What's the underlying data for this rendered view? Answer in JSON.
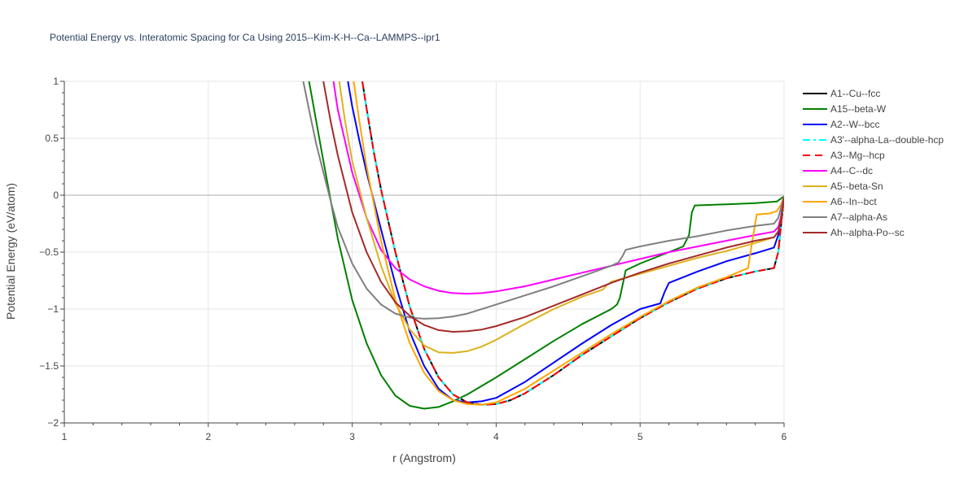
{
  "chart_data": {
    "type": "line",
    "title": "Potential Energy vs. Interatomic Spacing for Ca Using 2015--Kim-K-H--Ca--LAMMPS--ipr1",
    "xlabel": "r (Angstrom)",
    "ylabel": "Potential Energy (eV/atom)",
    "xlim": [
      1,
      6
    ],
    "ylim": [
      -2,
      1
    ],
    "xticks": [
      1,
      2,
      3,
      4,
      5,
      6
    ],
    "xtick_labels": [
      "1",
      "2",
      "3",
      "4",
      "5",
      "6"
    ],
    "yticks": [
      -2,
      -1.5,
      -1,
      -0.5,
      0,
      0.5,
      1
    ],
    "ytick_labels": [
      "−2",
      "−1.5",
      "−1",
      "−0.5",
      "0",
      "0.5",
      "1"
    ],
    "grid": true,
    "legend_position": "right",
    "series": [
      {
        "name": "A1--Cu--fcc",
        "color": "#000000",
        "dash": "solid",
        "x": [
          3.07,
          3.1,
          3.15,
          3.2,
          3.3,
          3.4,
          3.5,
          3.6,
          3.7,
          3.8,
          3.9,
          4.0,
          4.1,
          4.2,
          4.4,
          4.6,
          4.8,
          5.0,
          5.2,
          5.4,
          5.6,
          5.8,
          5.93,
          5.96,
          5.98,
          6.0
        ],
        "y": [
          1.0,
          0.76,
          0.38,
          0.05,
          -0.5,
          -0.98,
          -1.35,
          -1.6,
          -1.75,
          -1.82,
          -1.84,
          -1.835,
          -1.8,
          -1.74,
          -1.58,
          -1.4,
          -1.24,
          -1.08,
          -0.94,
          -0.82,
          -0.73,
          -0.67,
          -0.64,
          -0.5,
          -0.25,
          -0.02
        ]
      },
      {
        "name": "A15--beta-W",
        "color": "#008000",
        "dash": "solid",
        "x": [
          2.7,
          2.8,
          2.9,
          3.0,
          3.1,
          3.2,
          3.3,
          3.4,
          3.5,
          3.6,
          3.7,
          3.8,
          4.0,
          4.2,
          4.4,
          4.6,
          4.8,
          4.84,
          4.86,
          4.9,
          5.0,
          5.1,
          5.2,
          5.3,
          5.34,
          5.36,
          5.38,
          5.6,
          5.8,
          5.95,
          6.0
        ],
        "y": [
          1.0,
          0.3,
          -0.38,
          -0.92,
          -1.3,
          -1.58,
          -1.76,
          -1.85,
          -1.875,
          -1.86,
          -1.81,
          -1.75,
          -1.6,
          -1.44,
          -1.28,
          -1.13,
          -1.0,
          -0.96,
          -0.9,
          -0.66,
          -0.6,
          -0.55,
          -0.5,
          -0.45,
          -0.35,
          -0.15,
          -0.09,
          -0.08,
          -0.07,
          -0.055,
          -0.01
        ]
      },
      {
        "name": "A2--W--bcc",
        "color": "#0000ff",
        "dash": "solid",
        "x": [
          2.97,
          3.0,
          3.05,
          3.1,
          3.2,
          3.3,
          3.4,
          3.5,
          3.6,
          3.7,
          3.8,
          3.9,
          4.0,
          4.2,
          4.4,
          4.6,
          4.8,
          5.0,
          5.14,
          5.17,
          5.2,
          5.4,
          5.6,
          5.8,
          5.93,
          5.96,
          5.98,
          6.0
        ],
        "y": [
          1.0,
          0.78,
          0.48,
          0.2,
          -0.3,
          -0.78,
          -1.2,
          -1.5,
          -1.7,
          -1.8,
          -1.82,
          -1.81,
          -1.78,
          -1.64,
          -1.47,
          -1.3,
          -1.14,
          -1.0,
          -0.95,
          -0.85,
          -0.77,
          -0.67,
          -0.58,
          -0.51,
          -0.46,
          -0.35,
          -0.18,
          -0.02
        ]
      },
      {
        "name": "A3'--alpha-La--double-hcp",
        "color": "#00ffff",
        "dash": "dash-dot",
        "x": [
          3.07,
          3.1,
          3.15,
          3.2,
          3.3,
          3.4,
          3.5,
          3.6,
          3.7,
          3.8,
          3.9,
          4.0,
          4.1,
          4.2,
          4.4,
          4.6,
          4.8,
          5.0,
          5.2,
          5.4,
          5.6,
          5.8,
          5.93,
          5.96,
          5.98,
          6.0
        ],
        "y": [
          1.0,
          0.76,
          0.38,
          0.05,
          -0.5,
          -0.98,
          -1.35,
          -1.6,
          -1.75,
          -1.82,
          -1.84,
          -1.835,
          -1.8,
          -1.74,
          -1.58,
          -1.4,
          -1.24,
          -1.08,
          -0.94,
          -0.82,
          -0.73,
          -0.67,
          -0.64,
          -0.5,
          -0.25,
          -0.02
        ]
      },
      {
        "name": "A3--Mg--hcp",
        "color": "#ff0000",
        "dash": "dash",
        "x": [
          3.07,
          3.1,
          3.15,
          3.2,
          3.3,
          3.4,
          3.5,
          3.6,
          3.7,
          3.8,
          3.9,
          4.0,
          4.1,
          4.2,
          4.4,
          4.6,
          4.8,
          5.0,
          5.2,
          5.4,
          5.6,
          5.8,
          5.93,
          5.96,
          5.98,
          6.0
        ],
        "y": [
          1.0,
          0.76,
          0.38,
          0.05,
          -0.5,
          -0.98,
          -1.35,
          -1.6,
          -1.75,
          -1.82,
          -1.84,
          -1.835,
          -1.8,
          -1.74,
          -1.58,
          -1.4,
          -1.24,
          -1.08,
          -0.94,
          -0.82,
          -0.73,
          -0.67,
          -0.64,
          -0.5,
          -0.25,
          -0.02
        ]
      },
      {
        "name": "A4--C--dc",
        "color": "#ff00ff",
        "dash": "solid",
        "x": [
          2.87,
          2.9,
          3.0,
          3.1,
          3.2,
          3.3,
          3.4,
          3.5,
          3.6,
          3.7,
          3.8,
          3.9,
          4.0,
          4.2,
          4.4,
          4.6,
          4.8,
          5.0,
          5.2,
          5.4,
          5.6,
          5.8,
          5.93,
          5.96,
          5.98,
          6.0
        ],
        "y": [
          1.0,
          0.75,
          0.2,
          -0.2,
          -0.48,
          -0.64,
          -0.74,
          -0.8,
          -0.84,
          -0.86,
          -0.865,
          -0.86,
          -0.845,
          -0.8,
          -0.74,
          -0.68,
          -0.62,
          -0.56,
          -0.5,
          -0.45,
          -0.4,
          -0.35,
          -0.32,
          -0.28,
          -0.18,
          -0.02
        ]
      },
      {
        "name": "A5--beta-Sn",
        "color": "#dbb21f",
        "dash": "solid",
        "x": [
          2.91,
          2.95,
          3.0,
          3.1,
          3.2,
          3.3,
          3.4,
          3.5,
          3.6,
          3.7,
          3.8,
          3.9,
          4.0,
          4.2,
          4.4,
          4.6,
          4.74,
          4.77,
          4.8,
          5.0,
          5.2,
          5.4,
          5.6,
          5.8,
          5.93,
          5.96,
          5.98,
          6.0
        ],
        "y": [
          1.0,
          0.65,
          0.3,
          -0.2,
          -0.62,
          -0.95,
          -1.18,
          -1.32,
          -1.38,
          -1.385,
          -1.37,
          -1.33,
          -1.27,
          -1.13,
          -1.0,
          -0.89,
          -0.83,
          -0.79,
          -0.76,
          -0.69,
          -0.62,
          -0.55,
          -0.49,
          -0.42,
          -0.37,
          -0.32,
          -0.2,
          -0.02
        ]
      },
      {
        "name": "A6--In--bct",
        "color": "#ffa500",
        "dash": "solid",
        "x": [
          3.01,
          3.05,
          3.1,
          3.2,
          3.3,
          3.4,
          3.5,
          3.6,
          3.7,
          3.8,
          3.9,
          4.0,
          4.2,
          4.4,
          4.6,
          4.8,
          5.0,
          5.2,
          5.4,
          5.6,
          5.75,
          5.78,
          5.81,
          5.9,
          5.95,
          5.98,
          6.0
        ],
        "y": [
          1.0,
          0.65,
          0.25,
          -0.4,
          -0.92,
          -1.3,
          -1.56,
          -1.72,
          -1.8,
          -1.835,
          -1.84,
          -1.82,
          -1.7,
          -1.54,
          -1.38,
          -1.22,
          -1.07,
          -0.93,
          -0.81,
          -0.72,
          -0.64,
          -0.4,
          -0.17,
          -0.16,
          -0.14,
          -0.08,
          -0.01
        ]
      },
      {
        "name": "A7--alpha-As",
        "color": "#808080",
        "dash": "solid",
        "x": [
          2.66,
          2.7,
          2.75,
          2.8,
          2.85,
          2.9,
          3.0,
          3.1,
          3.2,
          3.3,
          3.4,
          3.5,
          3.6,
          3.7,
          3.8,
          4.0,
          4.2,
          4.4,
          4.6,
          4.8,
          4.85,
          4.88,
          4.9,
          5.0,
          5.2,
          5.4,
          5.6,
          5.8,
          5.93,
          5.96,
          6.0
        ],
        "y": [
          1.0,
          0.75,
          0.45,
          0.2,
          -0.05,
          -0.28,
          -0.6,
          -0.82,
          -0.96,
          -1.04,
          -1.075,
          -1.085,
          -1.08,
          -1.065,
          -1.04,
          -0.96,
          -0.88,
          -0.8,
          -0.71,
          -0.62,
          -0.59,
          -0.53,
          -0.48,
          -0.45,
          -0.4,
          -0.36,
          -0.31,
          -0.27,
          -0.25,
          -0.2,
          -0.01
        ]
      },
      {
        "name": "Ah--alpha-Po--sc",
        "color": "#a52a2a",
        "dash": "solid",
        "x": [
          2.8,
          2.85,
          2.9,
          3.0,
          3.1,
          3.2,
          3.3,
          3.4,
          3.5,
          3.6,
          3.7,
          3.8,
          3.9,
          4.0,
          4.2,
          4.4,
          4.6,
          4.8,
          5.0,
          5.2,
          5.4,
          5.6,
          5.8,
          5.93,
          5.96,
          5.98,
          6.0
        ],
        "y": [
          1.0,
          0.65,
          0.35,
          -0.15,
          -0.5,
          -0.76,
          -0.94,
          -1.06,
          -1.14,
          -1.185,
          -1.2,
          -1.195,
          -1.18,
          -1.15,
          -1.07,
          -0.97,
          -0.87,
          -0.77,
          -0.68,
          -0.6,
          -0.53,
          -0.46,
          -0.4,
          -0.37,
          -0.32,
          -0.2,
          -0.02
        ]
      }
    ]
  }
}
